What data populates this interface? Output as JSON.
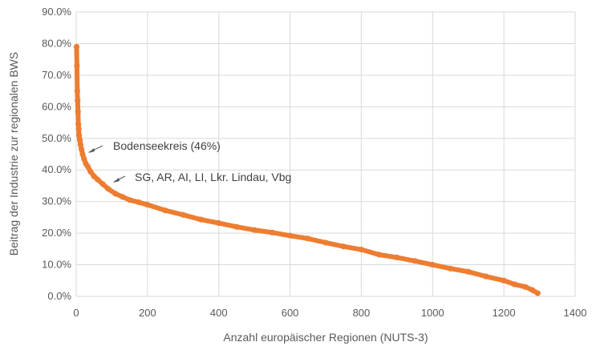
{
  "chart_data": {
    "type": "scatter",
    "title": "",
    "xlabel": "Anzahl europäischer Regionen (NUTS-3)",
    "ylabel": "Beitrag der Industrie zur regionalen BWS",
    "xlim": [
      0,
      1400
    ],
    "ylim": [
      0,
      90
    ],
    "x_ticks": [
      0,
      200,
      400,
      600,
      800,
      1000,
      1200,
      1400
    ],
    "x_tick_labels": [
      "0",
      "200",
      "400",
      "600",
      "800",
      "1000",
      "1200",
      "1400"
    ],
    "y_ticks": [
      0,
      10,
      20,
      30,
      40,
      50,
      60,
      70,
      80,
      90
    ],
    "y_tick_labels": [
      "0.0%",
      "10.0%",
      "20.0%",
      "30.0%",
      "40.0%",
      "50.0%",
      "60.0%",
      "70.0%",
      "80.0%",
      "90.0%"
    ],
    "grid": true,
    "color": "#ED7D31",
    "series": [
      {
        "name": "",
        "x": [
          1,
          2,
          3,
          4,
          5,
          6,
          7,
          8,
          10,
          12,
          15,
          18,
          22,
          27,
          33,
          40,
          50,
          60,
          75,
          90,
          110,
          130,
          150,
          175,
          200,
          250,
          300,
          350,
          400,
          450,
          500,
          550,
          600,
          650,
          700,
          750,
          800,
          850,
          900,
          950,
          1000,
          1050,
          1100,
          1150,
          1200,
          1230,
          1260,
          1280,
          1295
        ],
        "y": [
          79,
          73,
          65,
          62,
          58.5,
          54.5,
          53,
          51,
          49.5,
          48,
          46.5,
          45,
          43.5,
          42,
          41,
          39.5,
          38,
          37,
          35.5,
          34,
          32.5,
          31.5,
          30.5,
          29.8,
          29,
          27.2,
          25.8,
          24.3,
          23.2,
          22,
          21,
          20.2,
          19.2,
          18.3,
          17,
          15.8,
          14.8,
          13.2,
          12.3,
          11.2,
          10,
          8.8,
          7.8,
          6.3,
          5,
          3.8,
          3,
          2,
          1
        ]
      }
    ],
    "annotations": [
      {
        "text": "Bodenseekreis (46%)",
        "x": 20,
        "y": 46
      },
      {
        "text": "SG, AR, AI, LI, Lkr. Lindau, Vbg",
        "x": 100,
        "y": 36
      }
    ]
  }
}
